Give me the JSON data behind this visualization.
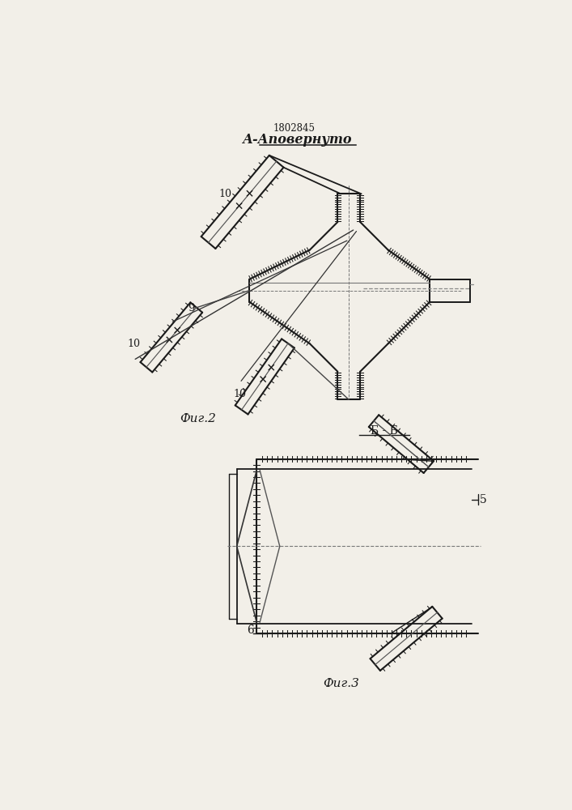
{
  "patent_number": "1802845",
  "title_aa": "А-Аповернуто",
  "fig2_label": "Фиг.2",
  "fig3_label": "Фиг.3",
  "bb_label": "Б - Б",
  "label_5": "5",
  "label_6": "6",
  "label_9": "9",
  "label_10": "10",
  "bg_color": "#f2efe8",
  "line_color": "#1a1a1a",
  "fig_width": 7.07,
  "fig_height": 10.0,
  "dpi": 100
}
